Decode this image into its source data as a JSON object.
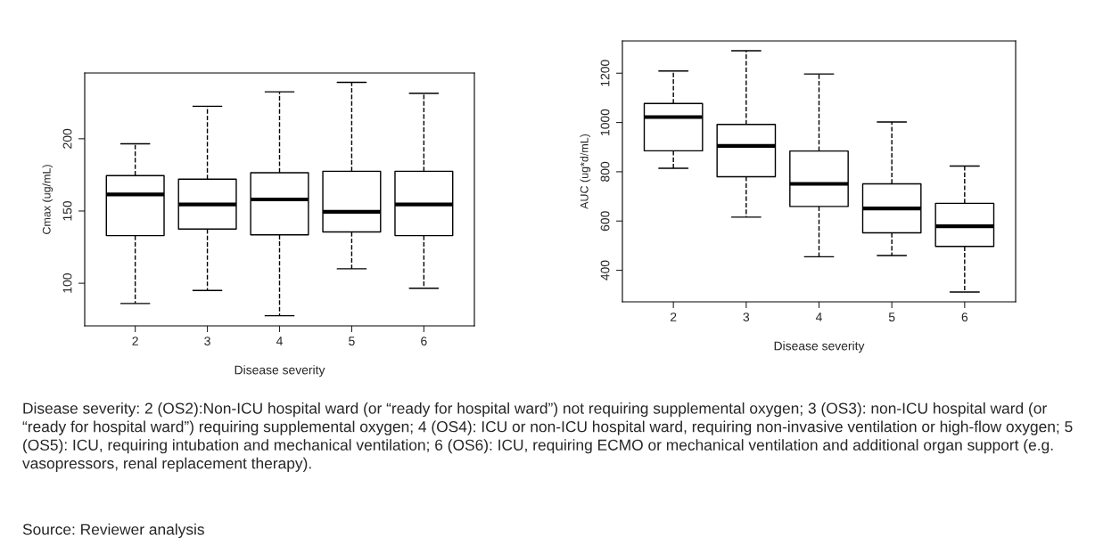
{
  "chart_data": [
    {
      "type": "box",
      "xlabel": "Disease severity",
      "ylabel": "Cmax (ug/mL)",
      "categories": [
        "2",
        "3",
        "4",
        "5",
        "6"
      ],
      "boxes": [
        {
          "low": 86,
          "q1": 133,
          "median": 161.5,
          "q3": 174.5,
          "high": 196.5
        },
        {
          "low": 95,
          "q1": 137.5,
          "median": 154.5,
          "q3": 172,
          "high": 222.5
        },
        {
          "low": 77.5,
          "q1": 133.5,
          "median": 158,
          "q3": 176.5,
          "high": 232.5
        },
        {
          "low": 110,
          "q1": 135.5,
          "median": 149.5,
          "q3": 177.5,
          "high": 239
        },
        {
          "low": 96.5,
          "q1": 133,
          "median": 154.5,
          "q3": 177.5,
          "high": 231.5
        }
      ],
      "ylim": [
        70.5,
        245.5
      ],
      "yticks": [
        100,
        150,
        200
      ],
      "grid": false,
      "annotations": [
        "Disease severity: 2 (OS2):Non-ICU hospital ward (or “ready for hospital ward”) not requiring supplemental oxygen; 3 (OS3): non-ICU hospital ward (or “ready for hospital ward”) requiring supplemental oxygen; 4 (OS4): ICU or non-ICU hospital ward, requiring non-invasive ventilation or high-flow oxygen; 5 (OS5): ICU, requiring intubation and mechanical ventilation; 6 (OS6): ICU, requiring ECMO or mechanical ventilation and additional organ support (e.g. vasopressors, renal replacement therapy).",
        "Source: Reviewer analysis"
      ]
    },
    {
      "type": "box",
      "xlabel": "Disease severity",
      "ylabel": "AUC (ug*d/mL)",
      "categories": [
        "2",
        "3",
        "4",
        "5",
        "6"
      ],
      "boxes": [
        {
          "low": 814,
          "q1": 885,
          "median": 1022,
          "q3": 1077,
          "high": 1209
        },
        {
          "low": 616,
          "q1": 780,
          "median": 905,
          "q3": 992,
          "high": 1291
        },
        {
          "low": 455,
          "q1": 659,
          "median": 751,
          "q3": 884,
          "high": 1197
        },
        {
          "low": 460,
          "q1": 552,
          "median": 651,
          "q3": 751,
          "high": 1002
        },
        {
          "low": 312,
          "q1": 497,
          "median": 579,
          "q3": 672,
          "high": 823
        }
      ],
      "ylim": [
        272,
        1331
      ],
      "yticks": [
        400,
        600,
        800,
        1000,
        1200
      ],
      "grid": false
    }
  ]
}
